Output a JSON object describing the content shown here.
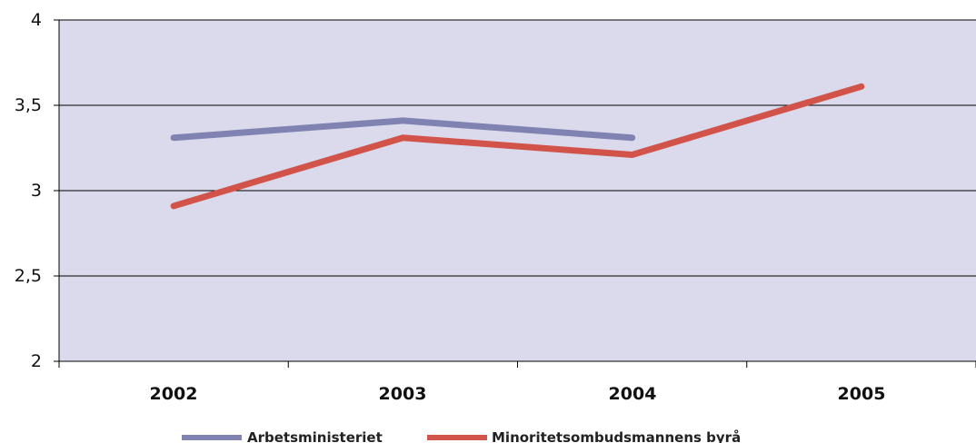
{
  "chart_data": {
    "type": "line",
    "categories": [
      "2002",
      "2003",
      "2004",
      "2005"
    ],
    "y_ticks": [
      "2",
      "2,5",
      "3",
      "3,5",
      "4"
    ],
    "ylim": [
      2,
      4
    ],
    "grid": "horizontal",
    "legend_position": "bottom",
    "background_color": "#dadaec",
    "series": [
      {
        "name": "Arbetsministeriet",
        "color": "#8083b1",
        "values": [
          3.31,
          3.41,
          3.31,
          null
        ]
      },
      {
        "name": "Minoritetsombudsmannens byrå",
        "color": "#d1534a",
        "values": [
          2.91,
          3.31,
          3.21,
          3.61
        ]
      }
    ]
  }
}
